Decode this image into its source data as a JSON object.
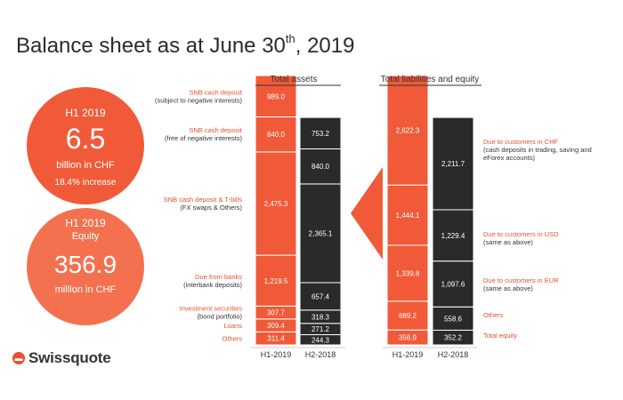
{
  "header": {
    "title_main": "Balance sheet as at June 30",
    "title_sup": "th",
    "title_end": ", 2019"
  },
  "kpi_revenue": {
    "period": "H1 2019",
    "value": "6.5",
    "unit": "billion in CHF",
    "change": "18.4% increase"
  },
  "kpi_equity": {
    "period": "H1 2019",
    "label": "Equity",
    "value": "356.9",
    "unit": "million in CHF"
  },
  "brand": {
    "name": "Swissquote",
    "icon": "swissquote-logo-icon"
  },
  "colors": {
    "orange": "#f15a38",
    "dark": "#2a2a2a",
    "text_orange": "#e8502f"
  },
  "chart_data": [
    {
      "type": "bar",
      "stacked": true,
      "title": "Total assets",
      "categories": [
        "H1-2019",
        "H2-2018"
      ],
      "series": [
        {
          "name": "SNB cash deposit",
          "sub": "(subject to negative interests)",
          "values": [
            989.0,
            null
          ]
        },
        {
          "name": "SNB cash deposit",
          "sub": "(free of negative interests)",
          "values": [
            840.0,
            753.2
          ]
        },
        {
          "name": "",
          "sub": "",
          "values": [
            null,
            840.0
          ]
        },
        {
          "name": "SNB cash deposit & T-bills",
          "sub": "(FX swaps & Others)",
          "values": [
            2475.3,
            2365.1
          ]
        },
        {
          "name": "Due from banks",
          "sub": "(interbank deposits)",
          "values": [
            1219.5,
            657.4
          ]
        },
        {
          "name": "Investment securities",
          "sub": "(bond portfolio)",
          "values": [
            307.7,
            318.3
          ]
        },
        {
          "name": "Loans",
          "sub": "",
          "values": [
            309.4,
            271.2
          ]
        },
        {
          "name": "Others",
          "sub": "",
          "values": [
            311.4,
            244.3
          ]
        }
      ],
      "value_labels": [
        [
          "989.0",
          "840.0",
          "",
          "2,475.3",
          "1,219.5",
          "307.7",
          "309.4",
          "311.4"
        ],
        [
          "",
          "753.2",
          "840.0",
          "2,365.1",
          "657.4",
          "318.3",
          "271.2",
          "244.3"
        ]
      ]
    },
    {
      "type": "bar",
      "stacked": true,
      "title": "Total liabilities and equity",
      "categories": [
        "H1-2019",
        "H2-2018"
      ],
      "series": [
        {
          "name": "Due to customers in CHF",
          "sub": "(cash deposits in trading, saving and eForex accounts)",
          "values": [
            2622.3,
            2211.7
          ]
        },
        {
          "name": "Due to customers in USD",
          "sub": "(same as above)",
          "values": [
            1444.1,
            1229.4
          ]
        },
        {
          "name": "Due to customers in EUR",
          "sub": "(same as above)",
          "values": [
            1339.8,
            1097.6
          ]
        },
        {
          "name": "Others",
          "sub": "",
          "values": [
            689.2,
            558.6
          ]
        },
        {
          "name": "Total equity",
          "sub": "",
          "values": [
            356.9,
            352.2
          ]
        }
      ],
      "value_labels": [
        [
          "2,622.3",
          "1,444.1",
          "1,339.8",
          "689.2",
          "356.9"
        ],
        [
          "2,211.7",
          "1,229.4",
          "1,097.6",
          "558.6",
          "352.2"
        ]
      ]
    }
  ]
}
